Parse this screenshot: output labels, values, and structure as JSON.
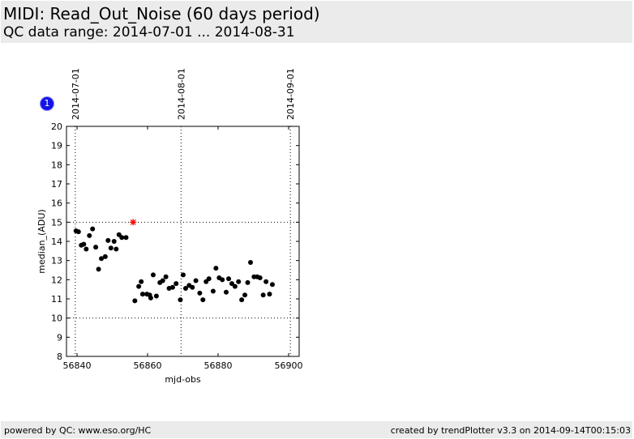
{
  "header": {
    "title": "MIDI: Read_Out_Noise (60 days period)",
    "subtitle": "QC data range: 2014-07-01 ... 2014-08-31"
  },
  "footer": {
    "left": "powered by QC: www.eso.org/HC",
    "right": "created by trendPlotter v3.3 on 2014-09-14T00:15:03"
  },
  "badge": {
    "label": "1"
  },
  "colors": {
    "points": "#000000",
    "outlier": "#ff0000",
    "badge": "#1414e6",
    "panel": "#ebebeb"
  },
  "chart_data": {
    "type": "scatter",
    "xlabel": "mjd-obs",
    "ylabel": "median_(ADU)",
    "xlim": [
      56837,
      56903
    ],
    "ylim": [
      8,
      20
    ],
    "xticks": [
      56840,
      56860,
      56880,
      56900
    ],
    "yticks": [
      8,
      9,
      10,
      11,
      12,
      13,
      14,
      15,
      16,
      17,
      18,
      19,
      20
    ],
    "hlines": [
      10,
      15
    ],
    "vlines": [
      {
        "x": 56839.5,
        "label": "2014-07-01"
      },
      {
        "x": 56869.5,
        "label": "2014-08-01"
      },
      {
        "x": 56900.5,
        "label": "2014-09-01"
      }
    ],
    "series": [
      {
        "marker": "dot",
        "points": [
          [
            56839.7,
            14.55
          ],
          [
            56840.4,
            14.5
          ],
          [
            56841.2,
            13.8
          ],
          [
            56841.9,
            13.85
          ],
          [
            56842.6,
            13.6
          ],
          [
            56843.5,
            14.3
          ],
          [
            56844.4,
            14.65
          ],
          [
            56845.3,
            13.7
          ],
          [
            56846.1,
            12.55
          ],
          [
            56846.9,
            13.1
          ],
          [
            56848.0,
            13.2
          ],
          [
            56848.8,
            14.05
          ],
          [
            56849.6,
            13.65
          ],
          [
            56850.5,
            14.0
          ],
          [
            56851.1,
            13.6
          ],
          [
            56851.9,
            14.35
          ],
          [
            56852.7,
            14.2
          ],
          [
            56853.9,
            14.2
          ],
          [
            56856.4,
            10.9
          ],
          [
            56857.5,
            11.65
          ],
          [
            56858.2,
            11.9
          ],
          [
            56858.6,
            11.25
          ],
          [
            56859.8,
            11.25
          ],
          [
            56860.6,
            11.2
          ],
          [
            56860.9,
            11.05
          ],
          [
            56861.6,
            12.25
          ],
          [
            56862.5,
            11.15
          ],
          [
            56863.5,
            11.85
          ],
          [
            56864.3,
            11.95
          ],
          [
            56865.2,
            12.15
          ],
          [
            56866.1,
            11.55
          ],
          [
            56867.1,
            11.6
          ],
          [
            56868.1,
            11.8
          ],
          [
            56869.3,
            10.95
          ],
          [
            56870.1,
            12.25
          ],
          [
            56870.8,
            11.55
          ],
          [
            56871.8,
            11.7
          ],
          [
            56872.7,
            11.6
          ],
          [
            56873.7,
            11.95
          ],
          [
            56874.8,
            11.3
          ],
          [
            56875.7,
            10.95
          ],
          [
            56876.6,
            11.9
          ],
          [
            56877.4,
            12.05
          ],
          [
            56878.6,
            11.4
          ],
          [
            56879.4,
            12.6
          ],
          [
            56880.3,
            12.1
          ],
          [
            56881.2,
            12.0
          ],
          [
            56882.3,
            11.35
          ],
          [
            56883.0,
            12.05
          ],
          [
            56883.9,
            11.8
          ],
          [
            56884.8,
            11.65
          ],
          [
            56885.8,
            11.9
          ],
          [
            56886.7,
            10.95
          ],
          [
            56887.6,
            11.2
          ],
          [
            56888.4,
            11.85
          ],
          [
            56889.2,
            12.9
          ],
          [
            56890.2,
            12.15
          ],
          [
            56891.1,
            12.15
          ],
          [
            56891.9,
            12.1
          ],
          [
            56892.8,
            11.2
          ],
          [
            56893.6,
            11.9
          ],
          [
            56894.6,
            11.25
          ],
          [
            56895.4,
            11.75
          ]
        ]
      },
      {
        "marker": "star",
        "color": "red",
        "points": [
          [
            56855.9,
            15.0
          ]
        ]
      }
    ]
  }
}
